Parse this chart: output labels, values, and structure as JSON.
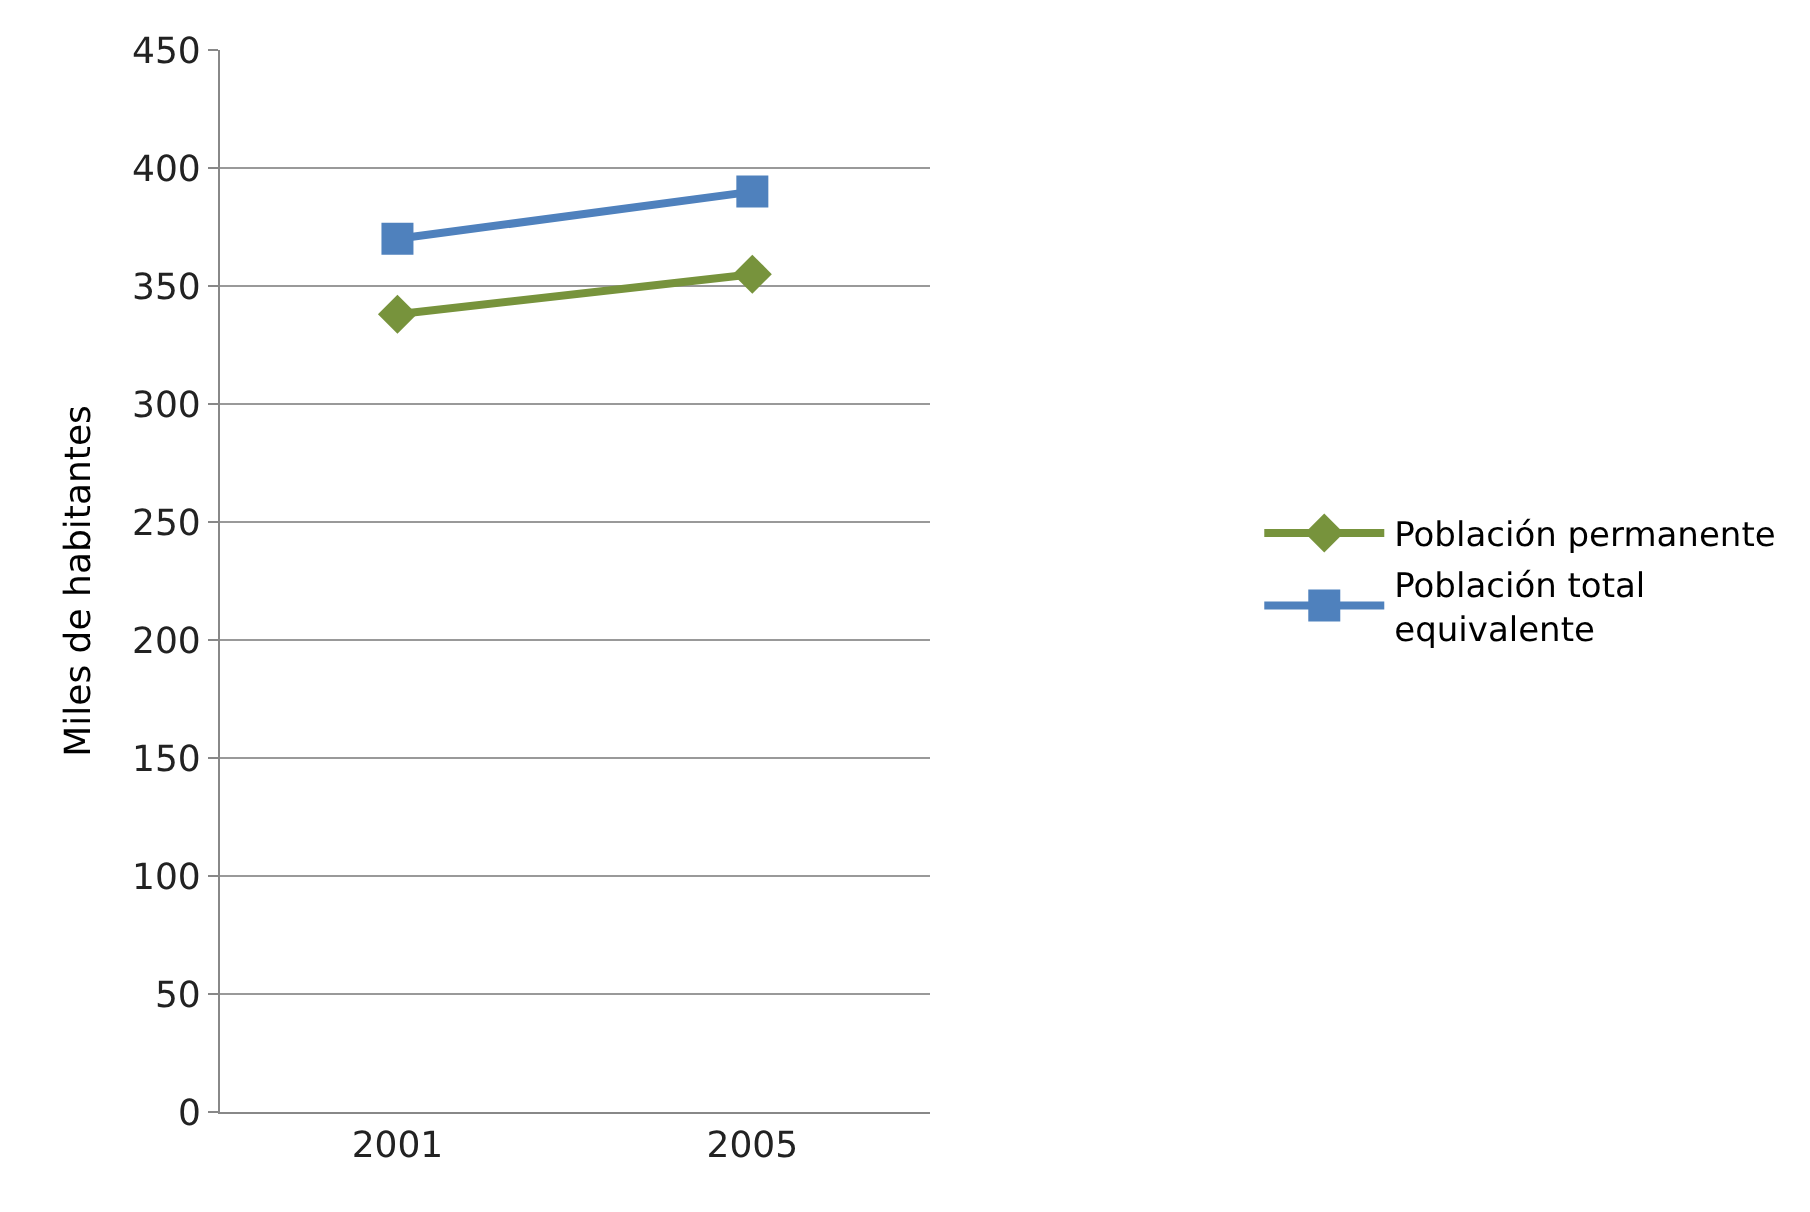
{
  "chart_data": {
    "type": "line",
    "ylabel": "Miles de habitantes",
    "categories": [
      "2001",
      "2005"
    ],
    "series": [
      {
        "name": "Población permanente",
        "color": "#77933c",
        "marker": "diamond",
        "values": [
          338,
          355
        ]
      },
      {
        "name": "Población total equivalente",
        "color": "#4f81bd",
        "marker": "square",
        "values": [
          370,
          390
        ]
      }
    ],
    "ylim": [
      0,
      450
    ],
    "yticks": [
      0,
      50,
      100,
      150,
      200,
      250,
      300,
      350,
      400,
      450
    ],
    "grid": "y",
    "legend": "right",
    "line_style": "solid"
  }
}
